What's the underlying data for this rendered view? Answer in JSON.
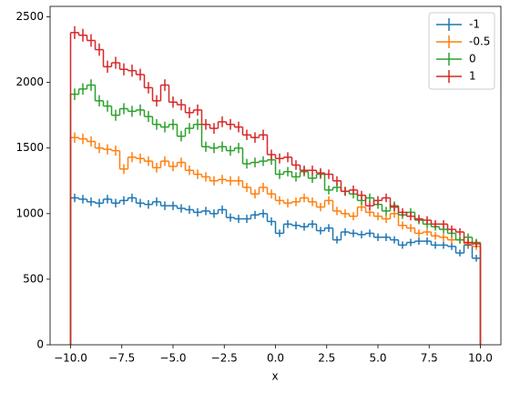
{
  "chart_data": {
    "type": "histogram_step",
    "xlabel": "x",
    "bins": [
      -10,
      -9.6,
      -9.2,
      -8.8,
      -8.4,
      -8,
      -7.6,
      -7.2,
      -6.8,
      -6.4,
      -6,
      -5.6,
      -5.2,
      -4.8,
      -4.4,
      -4,
      -3.6,
      -3.2,
      -2.8,
      -2.4,
      -2,
      -1.6,
      -1.2,
      -0.8,
      -0.4,
      0,
      0.4,
      0.8,
      1.2,
      1.6,
      2,
      2.4,
      2.8,
      3.2,
      3.6,
      4,
      4.4,
      4.8,
      5.2,
      5.6,
      6,
      6.4,
      6.8,
      7.2,
      7.6,
      8,
      8.4,
      8.8,
      9.2,
      9.6,
      10
    ],
    "series": [
      {
        "name": "-1",
        "color": "#1f77b4",
        "values": [
          1120,
          1110,
          1090,
          1080,
          1110,
          1080,
          1100,
          1120,
          1080,
          1070,
          1090,
          1060,
          1060,
          1040,
          1030,
          1010,
          1020,
          1000,
          1030,
          970,
          960,
          960,
          990,
          1000,
          940,
          850,
          920,
          910,
          900,
          920,
          870,
          890,
          800,
          860,
          850,
          840,
          850,
          820,
          820,
          800,
          760,
          780,
          790,
          790,
          760,
          760,
          750,
          700,
          760,
          660
        ],
        "errors": [
          33,
          33,
          33,
          33,
          33,
          33,
          33,
          33,
          33,
          33,
          33,
          33,
          33,
          32,
          32,
          32,
          32,
          32,
          32,
          31,
          31,
          31,
          31,
          32,
          31,
          29,
          30,
          30,
          30,
          30,
          29,
          30,
          28,
          29,
          29,
          29,
          29,
          29,
          29,
          28,
          28,
          28,
          28,
          28,
          28,
          28,
          27,
          26,
          28,
          26
        ]
      },
      {
        "name": "-0.5",
        "color": "#ff7f0e",
        "values": [
          1580,
          1570,
          1550,
          1500,
          1490,
          1480,
          1340,
          1430,
          1420,
          1400,
          1350,
          1400,
          1360,
          1390,
          1330,
          1300,
          1280,
          1250,
          1260,
          1250,
          1250,
          1200,
          1150,
          1200,
          1150,
          1100,
          1080,
          1090,
          1120,
          1090,
          1050,
          1100,
          1020,
          1000,
          980,
          1050,
          1010,
          980,
          960,
          1000,
          910,
          890,
          850,
          860,
          830,
          820,
          800,
          800,
          770,
          750
        ],
        "errors": [
          40,
          40,
          39,
          39,
          39,
          38,
          37,
          38,
          38,
          37,
          37,
          37,
          37,
          37,
          36,
          36,
          36,
          35,
          35,
          35,
          35,
          35,
          34,
          35,
          34,
          33,
          33,
          33,
          33,
          33,
          32,
          33,
          32,
          32,
          31,
          32,
          32,
          31,
          31,
          32,
          30,
          30,
          29,
          29,
          29,
          29,
          28,
          28,
          28,
          27
        ]
      },
      {
        "name": "0",
        "color": "#2ca02c",
        "values": [
          1910,
          1950,
          1980,
          1860,
          1820,
          1750,
          1800,
          1780,
          1790,
          1740,
          1680,
          1660,
          1680,
          1590,
          1650,
          1680,
          1510,
          1500,
          1510,
          1480,
          1500,
          1380,
          1390,
          1400,
          1410,
          1300,
          1320,
          1280,
          1320,
          1270,
          1300,
          1180,
          1200,
          1170,
          1150,
          1100,
          1120,
          1070,
          1020,
          1060,
          990,
          1010,
          950,
          920,
          900,
          880,
          850,
          800,
          820,
          780
        ],
        "errors": [
          44,
          44,
          44,
          43,
          43,
          42,
          42,
          42,
          42,
          42,
          41,
          41,
          41,
          40,
          41,
          41,
          39,
          39,
          39,
          38,
          39,
          37,
          37,
          37,
          38,
          36,
          36,
          36,
          36,
          36,
          36,
          34,
          35,
          34,
          34,
          33,
          33,
          33,
          32,
          33,
          31,
          32,
          31,
          30,
          30,
          30,
          29,
          28,
          29,
          28
        ]
      },
      {
        "name": "1",
        "color": "#d62728",
        "values": [
          2380,
          2360,
          2320,
          2250,
          2120,
          2150,
          2100,
          2090,
          2060,
          1960,
          1860,
          1980,
          1850,
          1830,
          1770,
          1790,
          1680,
          1650,
          1700,
          1680,
          1660,
          1600,
          1580,
          1600,
          1450,
          1420,
          1430,
          1370,
          1330,
          1330,
          1310,
          1300,
          1250,
          1170,
          1180,
          1140,
          1060,
          1100,
          1120,
          1050,
          1010,
          980,
          960,
          950,
          920,
          920,
          880,
          860,
          780,
          770
        ],
        "errors": [
          49,
          49,
          48,
          47,
          46,
          46,
          46,
          46,
          45,
          44,
          43,
          44,
          43,
          43,
          42,
          42,
          41,
          41,
          41,
          41,
          41,
          40,
          40,
          40,
          38,
          38,
          38,
          37,
          36,
          36,
          36,
          36,
          35,
          34,
          34,
          34,
          33,
          33,
          33,
          32,
          32,
          31,
          31,
          31,
          30,
          30,
          30,
          29,
          28,
          28
        ]
      }
    ],
    "xlim": [
      -11,
      11
    ],
    "ylim": [
      0,
      2580
    ],
    "xticks": [
      {
        "value": -10,
        "label": "−10.0"
      },
      {
        "value": -7.5,
        "label": "−7.5"
      },
      {
        "value": -5,
        "label": "−5.0"
      },
      {
        "value": -2.5,
        "label": "−2.5"
      },
      {
        "value": 0,
        "label": "0.0"
      },
      {
        "value": 2.5,
        "label": "2.5"
      },
      {
        "value": 5,
        "label": "5.0"
      },
      {
        "value": 7.5,
        "label": "7.5"
      },
      {
        "value": 10,
        "label": "10.0"
      }
    ],
    "yticks": [
      0,
      500,
      1000,
      1500,
      2000,
      2500
    ],
    "legend": "upper-right"
  }
}
